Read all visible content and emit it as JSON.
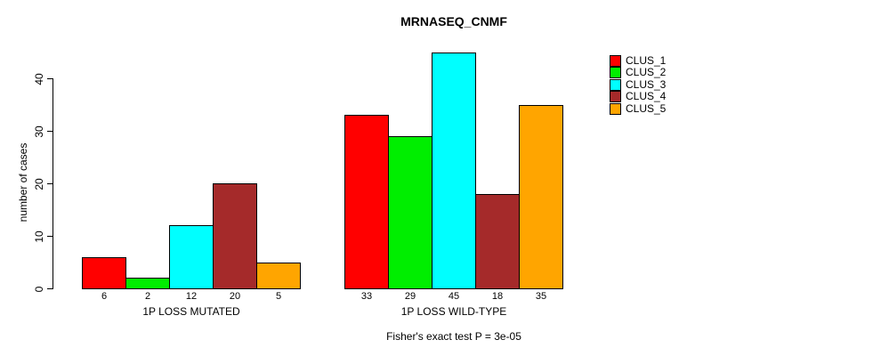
{
  "title": "MRNASEQ_CNMF",
  "footnote": "Fisher's exact test P = 3e-05",
  "y_axis": {
    "label": "number of cases"
  },
  "chart_data": {
    "type": "bar",
    "title": "MRNASEQ_CNMF",
    "xlabel": "",
    "ylabel": "number of cases",
    "ylim": [
      0,
      45
    ],
    "yticks": [
      0,
      10,
      20,
      30,
      40
    ],
    "grid": false,
    "legend_position": "top-right-outside-bars",
    "categories": [
      "CLUS_1",
      "CLUS_2",
      "CLUS_3",
      "CLUS_4",
      "CLUS_5"
    ],
    "colors": [
      "#FF0000",
      "#00EE00",
      "#00FFFF",
      "#A52A2A",
      "#FFA500"
    ],
    "groups": [
      {
        "label": "1P LOSS MUTATED",
        "values": [
          6,
          2,
          12,
          20,
          5
        ]
      },
      {
        "label": "1P LOSS WILD-TYPE",
        "values": [
          33,
          29,
          45,
          18,
          35
        ]
      }
    ],
    "annotation": "Fisher's exact test P = 3e-05"
  }
}
